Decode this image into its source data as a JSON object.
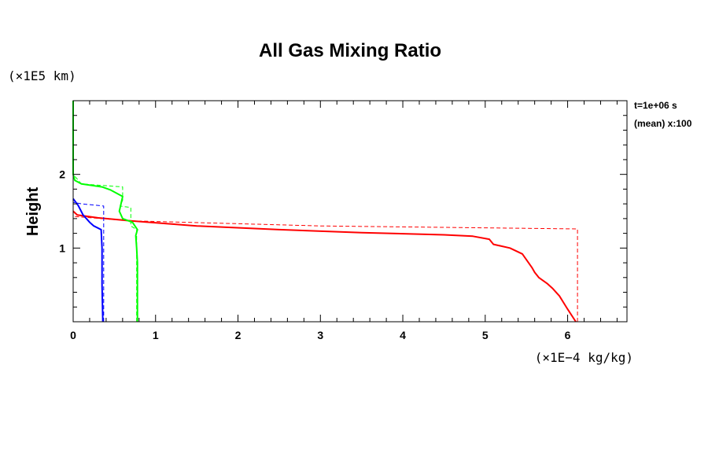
{
  "chart_data": {
    "type": "line",
    "title": "All Gas Mixing Ratio",
    "ylabel": "Height",
    "y_unit": "(×1E5 km)",
    "x_unit": "(×1E−4 kg/kg)",
    "info_lines": [
      "t=1e+06 s",
      "(mean) x:100"
    ],
    "xlim": [
      0,
      6.72
    ],
    "ylim": [
      0,
      3.0
    ],
    "x_ticks": [
      "0",
      "1",
      "2",
      "3",
      "4",
      "5",
      "6"
    ],
    "y_ticks": [
      "1",
      "2"
    ],
    "grid": false,
    "series": [
      {
        "color": "#ff0000",
        "dash": false,
        "x": [
          6.1,
          6.0,
          5.9,
          5.82,
          5.75,
          5.65,
          5.6,
          5.57,
          5.45,
          5.3,
          5.1,
          5.05,
          4.85,
          4.5,
          3.5,
          2.5,
          1.5,
          0.7,
          0.3,
          0.05,
          0.0
        ],
        "y": [
          0.0,
          0.17,
          0.35,
          0.45,
          0.52,
          0.6,
          0.67,
          0.73,
          0.92,
          1.0,
          1.05,
          1.12,
          1.16,
          1.18,
          1.21,
          1.25,
          1.3,
          1.37,
          1.41,
          1.45,
          1.5
        ]
      },
      {
        "color": "#ff0000",
        "dash": true,
        "x": [
          6.12,
          6.12,
          3.0,
          0.7,
          0.0
        ],
        "y": [
          0.0,
          1.26,
          1.3,
          1.37,
          1.43
        ]
      },
      {
        "color": "#00ff00",
        "dash": false,
        "x": [
          0.78,
          0.78,
          0.77,
          0.76,
          0.78,
          0.72,
          0.6,
          0.56,
          0.6,
          0.45,
          0.35,
          0.1,
          0.02,
          0.0,
          0.0
        ],
        "y": [
          0.0,
          0.8,
          1.0,
          1.17,
          1.25,
          1.35,
          1.4,
          1.5,
          1.7,
          1.79,
          1.83,
          1.87,
          1.92,
          2.0,
          3.0
        ]
      },
      {
        "color": "#00ff00",
        "dash": true,
        "x": [
          0.77,
          0.77,
          0.7,
          0.7,
          0.57,
          0.6,
          0.6,
          0.1,
          0.0
        ],
        "y": [
          0.0,
          1.25,
          1.3,
          1.55,
          1.57,
          1.65,
          1.83,
          1.87,
          2.0
        ]
      },
      {
        "color": "#0000ff",
        "dash": false,
        "x": [
          0.36,
          0.35,
          0.35,
          0.34,
          0.25,
          0.2,
          0.12,
          0.06,
          0.0
        ],
        "y": [
          0.0,
          0.5,
          1.0,
          1.25,
          1.3,
          1.35,
          1.45,
          1.58,
          1.67
        ]
      },
      {
        "color": "#0000ff",
        "dash": true,
        "x": [
          0.37,
          0.37,
          0.1,
          0.0
        ],
        "y": [
          0.0,
          1.57,
          1.6,
          1.62
        ]
      }
    ]
  }
}
